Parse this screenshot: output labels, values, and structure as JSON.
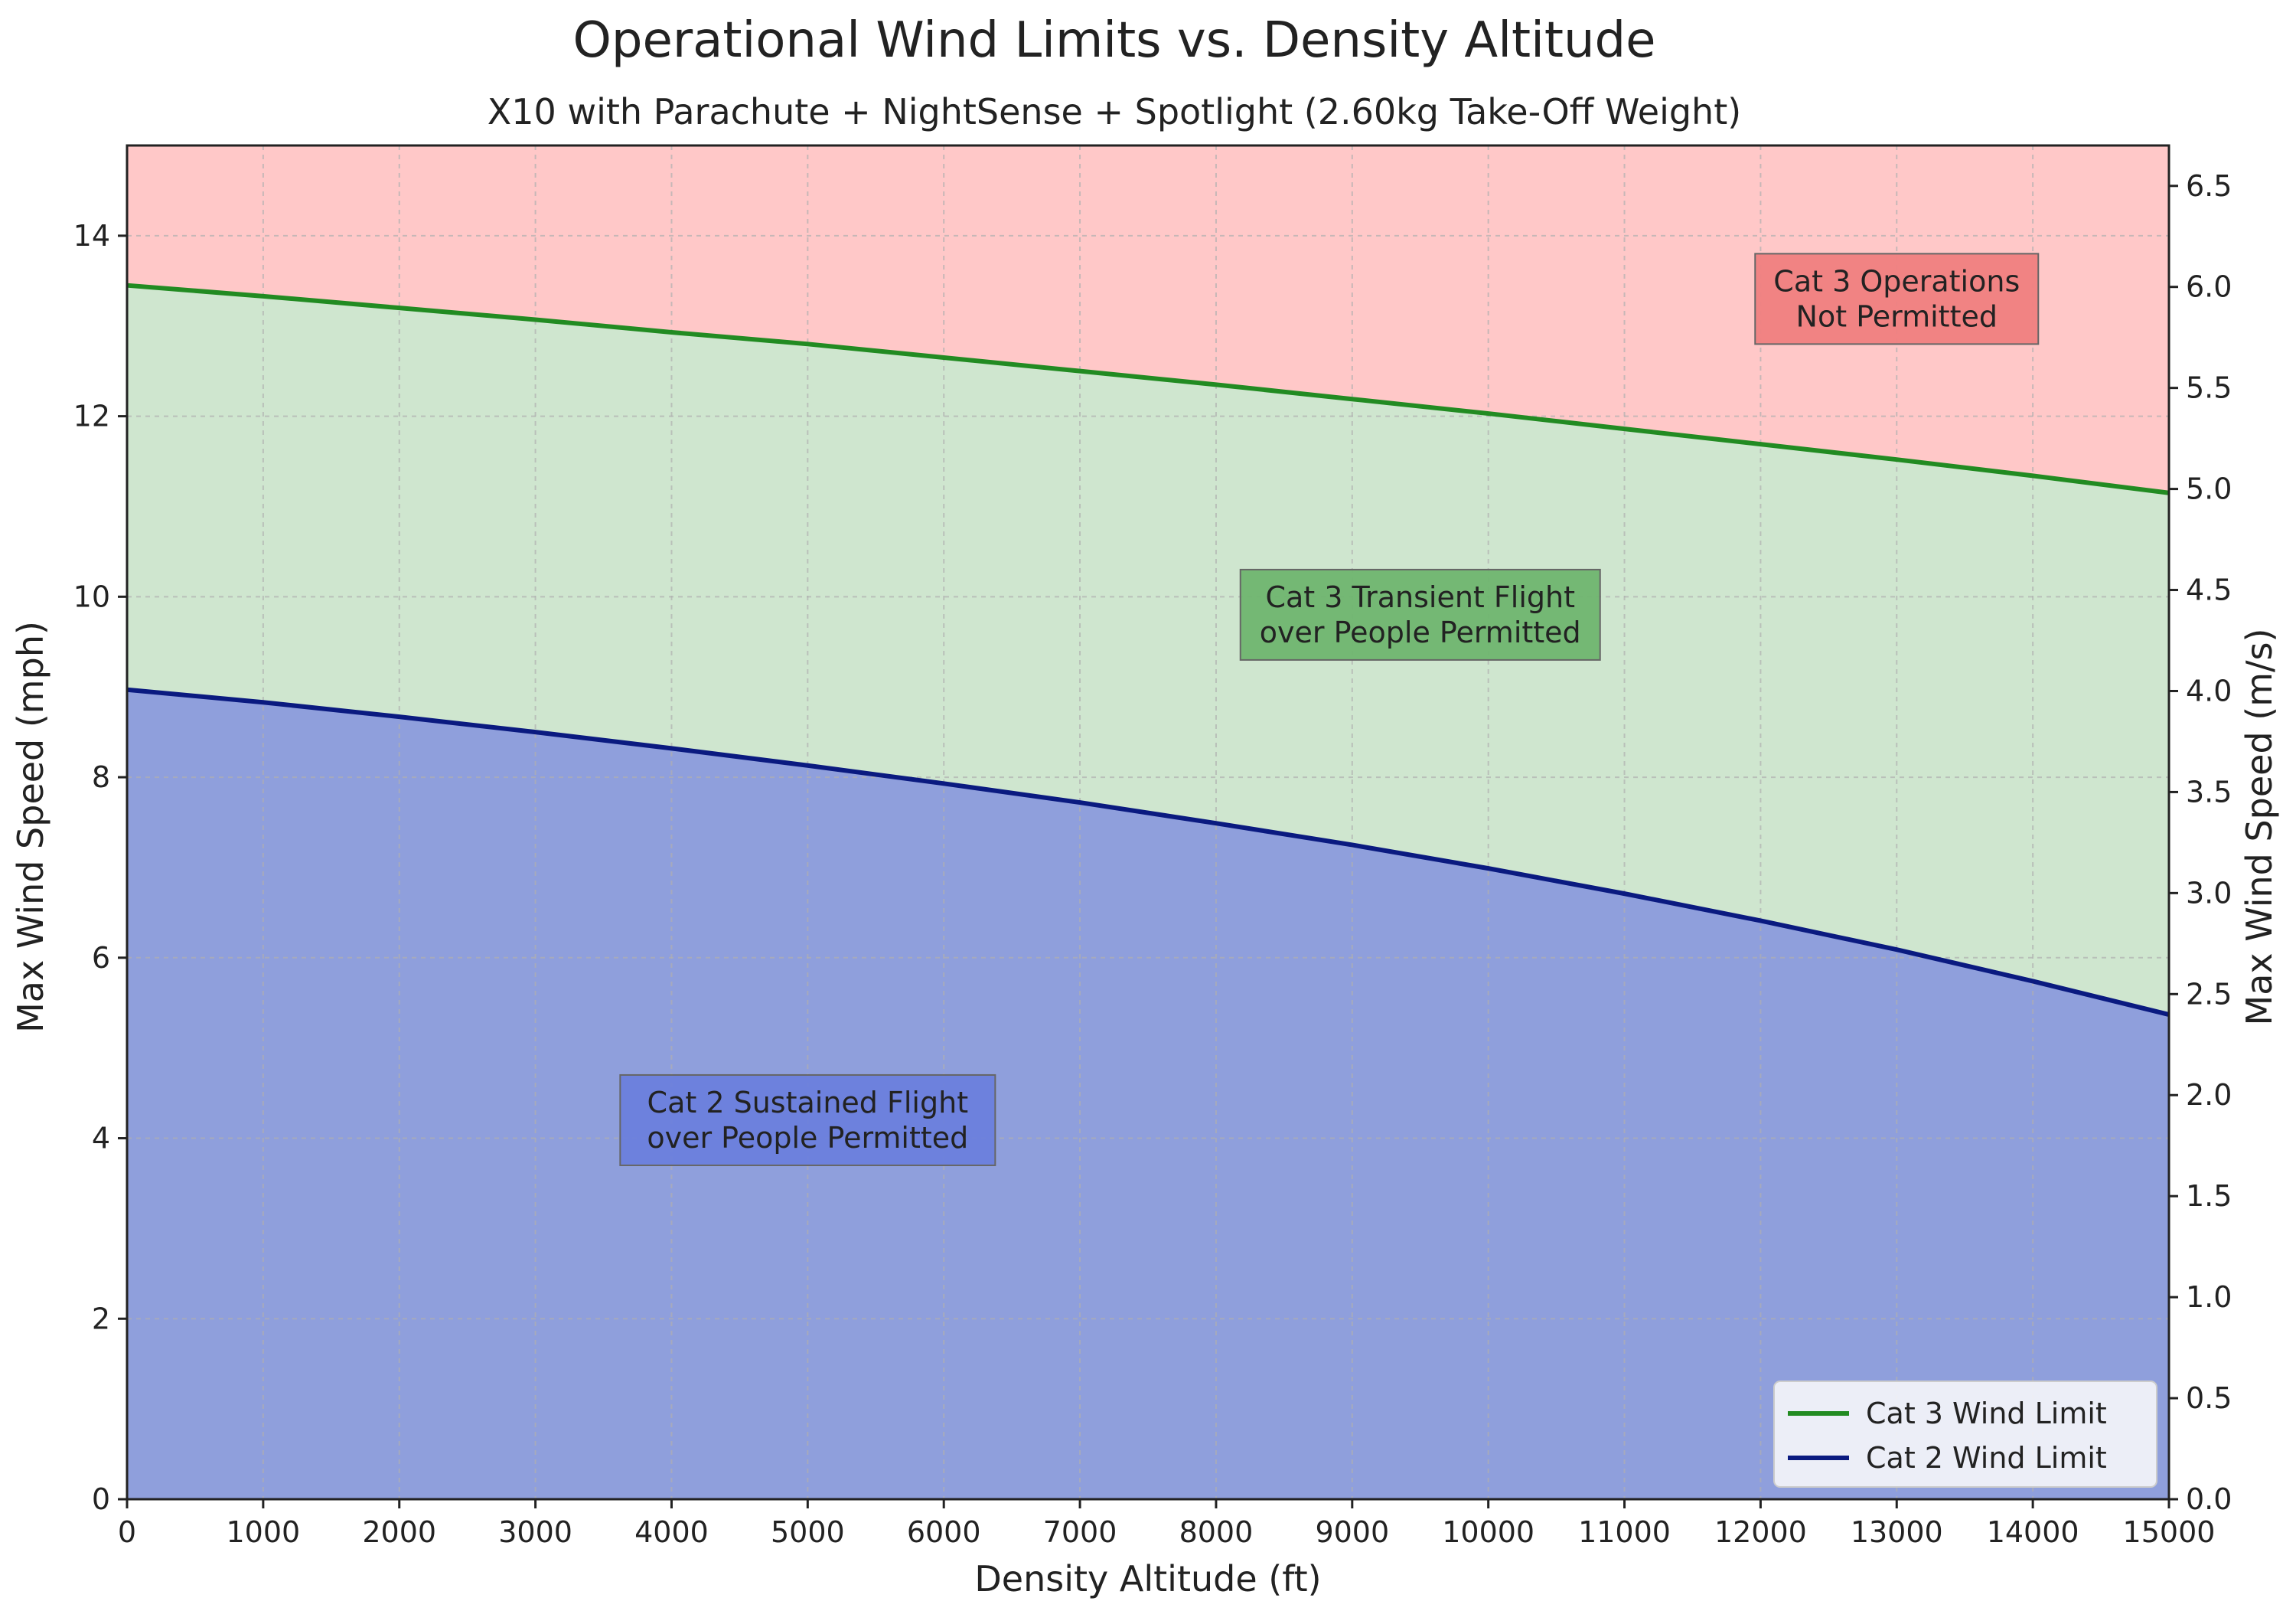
{
  "chart_data": {
    "type": "area",
    "title": "Operational Wind Limits vs. Density Altitude",
    "subtitle": "X10 with Parachute + NightSense + Spotlight (2.60kg Take-Off Weight)",
    "xlabel": "Density Altitude (ft)",
    "ylabel": "Max Wind Speed (mph)",
    "ylabel_right": "Max Wind Speed (m/s)",
    "xlim": [
      0,
      15000
    ],
    "ylim": [
      0,
      15
    ],
    "ylim_right": [
      0,
      6.7
    ],
    "x_ticks": [
      0,
      1000,
      2000,
      3000,
      4000,
      5000,
      6000,
      7000,
      8000,
      9000,
      10000,
      11000,
      12000,
      13000,
      14000,
      15000
    ],
    "y_ticks": [
      0,
      2,
      4,
      6,
      8,
      10,
      12,
      14
    ],
    "y_ticks_right": [
      "0.0",
      "0.5",
      "1.0",
      "1.5",
      "2.0",
      "2.5",
      "3.0",
      "3.5",
      "4.0",
      "4.5",
      "5.0",
      "5.5",
      "6.0",
      "6.5"
    ],
    "grid": true,
    "legend_position": "lower-right",
    "x": [
      0,
      1000,
      2000,
      3000,
      4000,
      5000,
      6000,
      7000,
      8000,
      9000,
      10000,
      11000,
      12000,
      13000,
      14000,
      15000
    ],
    "series": [
      {
        "name": "Cat 3 Wind Limit",
        "color": "#228b22",
        "values": [
          13.45,
          13.33,
          13.2,
          13.07,
          12.93,
          12.8,
          12.65,
          12.5,
          12.35,
          12.19,
          12.03,
          11.86,
          11.69,
          11.52,
          11.34,
          11.15
        ]
      },
      {
        "name": "Cat 2 Wind Limit",
        "color": "#0a1a80",
        "values": [
          8.97,
          8.83,
          8.67,
          8.5,
          8.32,
          8.13,
          7.93,
          7.72,
          7.49,
          7.25,
          6.99,
          6.71,
          6.41,
          6.09,
          5.74,
          5.37
        ]
      }
    ],
    "regions": [
      {
        "name": "Cat 3 Operations Not Permitted",
        "fill": "#ffc8c8",
        "label_box": "#f08080"
      },
      {
        "name": "Cat 3 Transient Flight over People Permitted",
        "fill": "#cfe6cf",
        "label_box": "#6fb56f"
      },
      {
        "name": "Cat 2 Sustained Flight over People Permitted",
        "fill": "#8f9fdc",
        "label_box": "#6b7fdc"
      }
    ],
    "annotations": [
      {
        "lines": [
          "Cat 3 Operations",
          "Not Permitted"
        ],
        "x": 13000,
        "y": 13.3,
        "region": 0
      },
      {
        "lines": [
          "Cat 3 Transient Flight",
          "over People Permitted"
        ],
        "x": 9500,
        "y": 9.8,
        "region": 1
      },
      {
        "lines": [
          "Cat 2 Sustained Flight",
          "over People Permitted"
        ],
        "x": 5000,
        "y": 4.2,
        "region": 2
      }
    ]
  }
}
